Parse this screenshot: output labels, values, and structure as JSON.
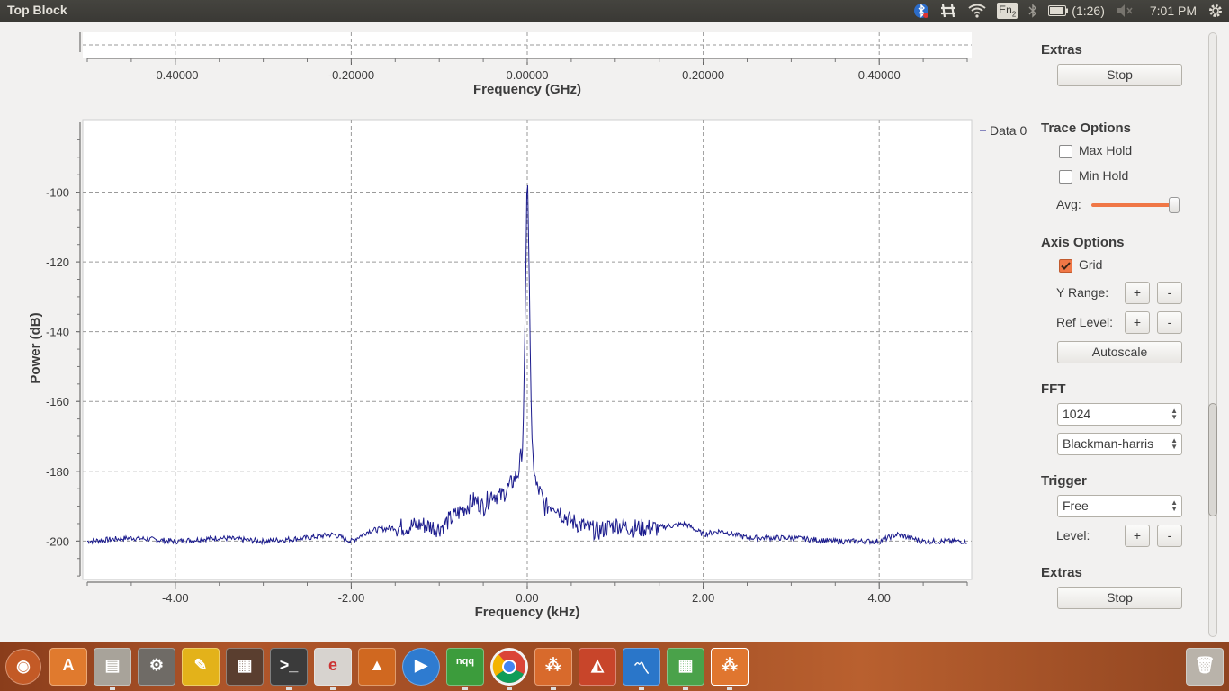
{
  "window": {
    "title": "Top Block"
  },
  "tray": {
    "battery_text": "(1:26)",
    "clock": "7:01 PM",
    "keyboard": "En",
    "keyboard_sub": "2"
  },
  "top_plot": {
    "x_ticks": [
      "-0.40000",
      "-0.20000",
      "0.00000",
      "0.20000",
      "0.40000"
    ],
    "xlabel": "Frequency (GHz)"
  },
  "chart_data": {
    "type": "line",
    "xlabel": "Frequency (kHz)",
    "ylabel": "Power (dB)",
    "xlim": [
      -5,
      5
    ],
    "ylim": [
      -211,
      -80
    ],
    "grid": true,
    "legend_position": "top-right",
    "x_ticks": [
      "-4.00",
      "-2.00",
      "0.00",
      "2.00",
      "4.00"
    ],
    "y_ticks": [
      "-100",
      "-120",
      "-140",
      "-160",
      "-180",
      "-200"
    ],
    "y_tick_values": [
      -100,
      -120,
      -140,
      -160,
      -180,
      -200
    ],
    "x_tick_values": [
      -4,
      -2,
      0,
      2,
      4
    ],
    "series": [
      {
        "name": "Data 0",
        "color": "#1a1a8c",
        "x": [
          -5,
          -4.5,
          -4.0,
          -3.5,
          -3.0,
          -2.5,
          -2.2,
          -2.0,
          -1.8,
          -1.5,
          -1.2,
          -1.0,
          -0.8,
          -0.6,
          -0.5,
          -0.4,
          -0.3,
          -0.2,
          -0.1,
          -0.05,
          -0.02,
          0.0,
          0.02,
          0.05,
          0.1,
          0.15,
          0.2,
          0.3,
          0.4,
          0.5,
          0.6,
          0.8,
          1.0,
          1.2,
          1.5,
          1.8,
          2.0,
          2.2,
          2.5,
          3.0,
          3.5,
          4.0,
          4.2,
          4.5,
          5.0
        ],
        "y": [
          -200,
          -199,
          -200,
          -199,
          -200,
          -199,
          -198,
          -200,
          -197,
          -196,
          -195,
          -196,
          -192,
          -188,
          -190,
          -186,
          -187,
          -184,
          -180,
          -172,
          -130,
          -91,
          -120,
          -172,
          -184,
          -186,
          -190,
          -189,
          -192,
          -194,
          -195,
          -197,
          -195,
          -196,
          -196,
          -195,
          -198,
          -197,
          -199,
          -199,
          -200,
          -200,
          -198,
          -200,
          -200
        ]
      }
    ]
  },
  "controls": {
    "extras_top": {
      "title": "Extras",
      "stop_label": "Stop"
    },
    "trace": {
      "title": "Trace Options",
      "max_hold": "Max Hold",
      "min_hold": "Min Hold",
      "avg_label": "Avg:",
      "avg_level": 0.95
    },
    "axis": {
      "title": "Axis Options",
      "grid": "Grid",
      "y_range": "Y Range:",
      "ref_level": "Ref Level:",
      "plus": "+",
      "minus": "-",
      "autoscale": "Autoscale"
    },
    "fft": {
      "title": "FFT",
      "size": "1024",
      "window": "Blackman-harris"
    },
    "trigger": {
      "title": "Trigger",
      "mode": "Free",
      "level_label": "Level:"
    },
    "extras_bottom": {
      "title": "Extras",
      "stop_label": "Stop"
    }
  },
  "launcher": {
    "items": [
      "dash",
      "software-center",
      "files",
      "system-settings",
      "text-editor",
      "workspace-switcher",
      "terminal",
      "document-viewer",
      "vlc",
      "media-player",
      "nqq-editor",
      "chrome",
      "gnuradio",
      "matlab",
      "system-monitor",
      "spreadsheet",
      "gnuradio-active",
      "trash"
    ],
    "nqq_label": "nqq"
  }
}
